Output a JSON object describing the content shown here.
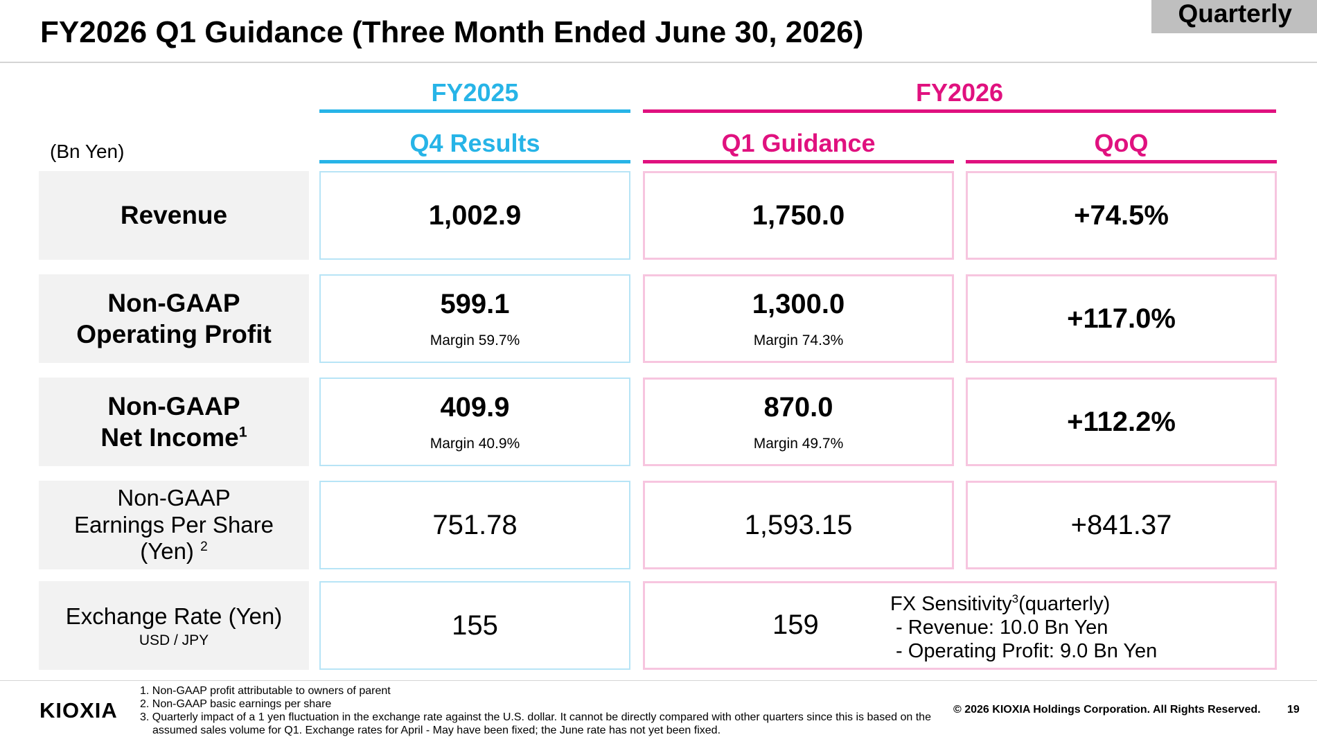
{
  "badge": "Quarterly",
  "title": "FY2026 Q1 Guidance (Three Month Ended June 30, 2026)",
  "unit_label": "(Bn Yen)",
  "groups": {
    "fy2025": "FY2025",
    "fy2026": "FY2026"
  },
  "columns": {
    "q4_results": "Q4 Results",
    "q1_guidance": "Q1 Guidance",
    "qoq": "QoQ"
  },
  "rows": {
    "revenue": {
      "label": "Revenue",
      "q4": "1,002.9",
      "q1": "1,750.0",
      "qoq": "+74.5%"
    },
    "op_profit": {
      "label_line1": "Non-GAAP",
      "label_line2": "Operating Profit",
      "q4": "599.1",
      "q4_margin": "Margin 59.7%",
      "q1": "1,300.0",
      "q1_margin": "Margin 74.3%",
      "qoq": "+117.0%"
    },
    "net_income": {
      "label_line1": "Non-GAAP",
      "label_line2": "Net Income",
      "label_sup": "1",
      "q4": "409.9",
      "q4_margin": "Margin 40.9%",
      "q1": "870.0",
      "q1_margin": "Margin 49.7%",
      "qoq": "+112.2%"
    },
    "eps": {
      "label_line1": "Non-GAAP",
      "label_line2": "Earnings Per Share",
      "label_line3": "(Yen) ",
      "label_sup": "2",
      "q4": "751.78",
      "q1": "1,593.15",
      "qoq": "+841.37"
    },
    "fx": {
      "label": "Exchange Rate (Yen)",
      "sub": "USD / JPY",
      "q4": "155",
      "q1": "159",
      "sens_title": "FX Sensitivity",
      "sens_sup": "3",
      "sens_suffix": "(quarterly)",
      "sens_revenue": " - Revenue: 10.0 Bn Yen",
      "sens_op": " - Operating Profit: 9.0 Bn Yen"
    }
  },
  "footer": {
    "logo": "KIOXIA",
    "notes": [
      "1. Non-GAAP profit attributable to owners of parent",
      "2. Non-GAAP basic earnings per share",
      "3. Quarterly impact of a 1 yen fluctuation in the exchange rate against the U.S. dollar. It cannot be directly compared with other quarters since this is based on the",
      "assumed sales volume for Q1. Exchange rates for April - May have been fixed; the June rate has not yet been fixed."
    ],
    "copyright": "© 2026 KIOXIA Holdings Corporation. All Rights Reserved.",
    "page_number": "19"
  },
  "colors": {
    "fy2025_accent": "#27b4e7",
    "fy2026_accent": "#e0117f",
    "label_bg": "#f2f2f2",
    "badge_bg": "#bfbfbf"
  }
}
